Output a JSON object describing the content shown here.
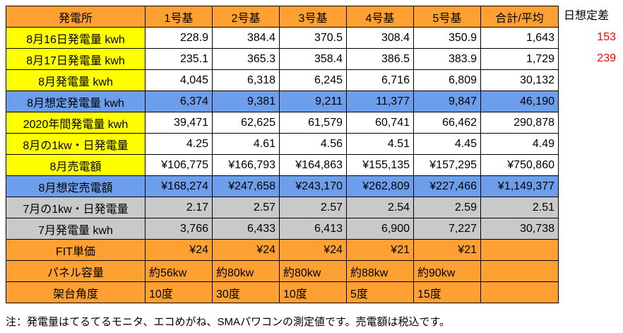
{
  "colors": {
    "orange": "#FFA033",
    "yellow": "#FFFF00",
    "blue": "#6D9EEB",
    "gray": "#C9C9C9",
    "red": "#FF0000",
    "border": "#000000"
  },
  "table": {
    "headers": [
      "発電所",
      "1号基",
      "2号基",
      "3号基",
      "4号基",
      "5号基",
      "合計/平均"
    ],
    "rows": [
      {
        "label": "8月16日発電量 kwh",
        "style": "yellow",
        "align": "right",
        "values": [
          "228.9",
          "384.4",
          "370.5",
          "308.4",
          "350.9",
          "1,643"
        ]
      },
      {
        "label": "8月17日発電量 kwh",
        "style": "yellow",
        "align": "right",
        "values": [
          "235.1",
          "365.3",
          "358.4",
          "386.5",
          "383.9",
          "1,729"
        ]
      },
      {
        "label": "8月発電量 kwh",
        "style": "yellow",
        "align": "right",
        "values": [
          "4,045",
          "6,318",
          "6,245",
          "6,716",
          "6,809",
          "30,132"
        ]
      },
      {
        "label": "8月想定発電量 kwh",
        "style": "blue",
        "align": "right",
        "values": [
          "6,374",
          "9,381",
          "9,211",
          "11,377",
          "9,847",
          "46,190"
        ]
      },
      {
        "label": "2020年間発電量 kwh",
        "style": "yellow",
        "align": "right",
        "values": [
          "39,471",
          "62,625",
          "61,579",
          "60,741",
          "66,462",
          "290,878"
        ]
      },
      {
        "label": "8月の1kw・日発電量",
        "style": "yellow",
        "align": "right",
        "values": [
          "4.25",
          "4.61",
          "4.56",
          "4.51",
          "4.45",
          "4.49"
        ]
      },
      {
        "label": "8月売電額",
        "style": "yellow",
        "align": "right",
        "values": [
          "¥106,775",
          "¥166,793",
          "¥164,863",
          "¥155,135",
          "¥157,295",
          "¥750,860"
        ]
      },
      {
        "label": "8月想定売電額",
        "style": "blue",
        "align": "right",
        "values": [
          "¥168,274",
          "¥247,658",
          "¥243,170",
          "¥262,809",
          "¥227,466",
          "¥1,149,377"
        ]
      },
      {
        "label": "7月の1kw・日発電量",
        "style": "gray",
        "align": "right",
        "values": [
          "2.17",
          "2.57",
          "2.57",
          "2.54",
          "2.59",
          "2.51"
        ]
      },
      {
        "label": "7月発電量 kwh",
        "style": "gray",
        "align": "right",
        "values": [
          "3,766",
          "6,433",
          "6,413",
          "6,900",
          "7,227",
          "30,738"
        ]
      },
      {
        "label": "FIT単価",
        "style": "orange",
        "align": "right",
        "values": [
          "¥24",
          "¥24",
          "¥24",
          "¥21",
          "¥21",
          ""
        ]
      },
      {
        "label": "パネル容量",
        "style": "orange",
        "align": "left",
        "values": [
          "約56kw",
          "約80kw",
          "約80kw",
          "約88kw",
          "約90kw",
          ""
        ]
      },
      {
        "label": "架台角度",
        "style": "orange",
        "align": "left",
        "values": [
          "10度",
          "30度",
          "10度",
          "5度",
          "15度",
          ""
        ]
      }
    ]
  },
  "side": {
    "title": "日想定差",
    "values": [
      "153",
      "239"
    ]
  },
  "note": "注：発電量はてるてるモニタ、エコめがね、SMAパワコンの測定値です。売電額は税込です。"
}
